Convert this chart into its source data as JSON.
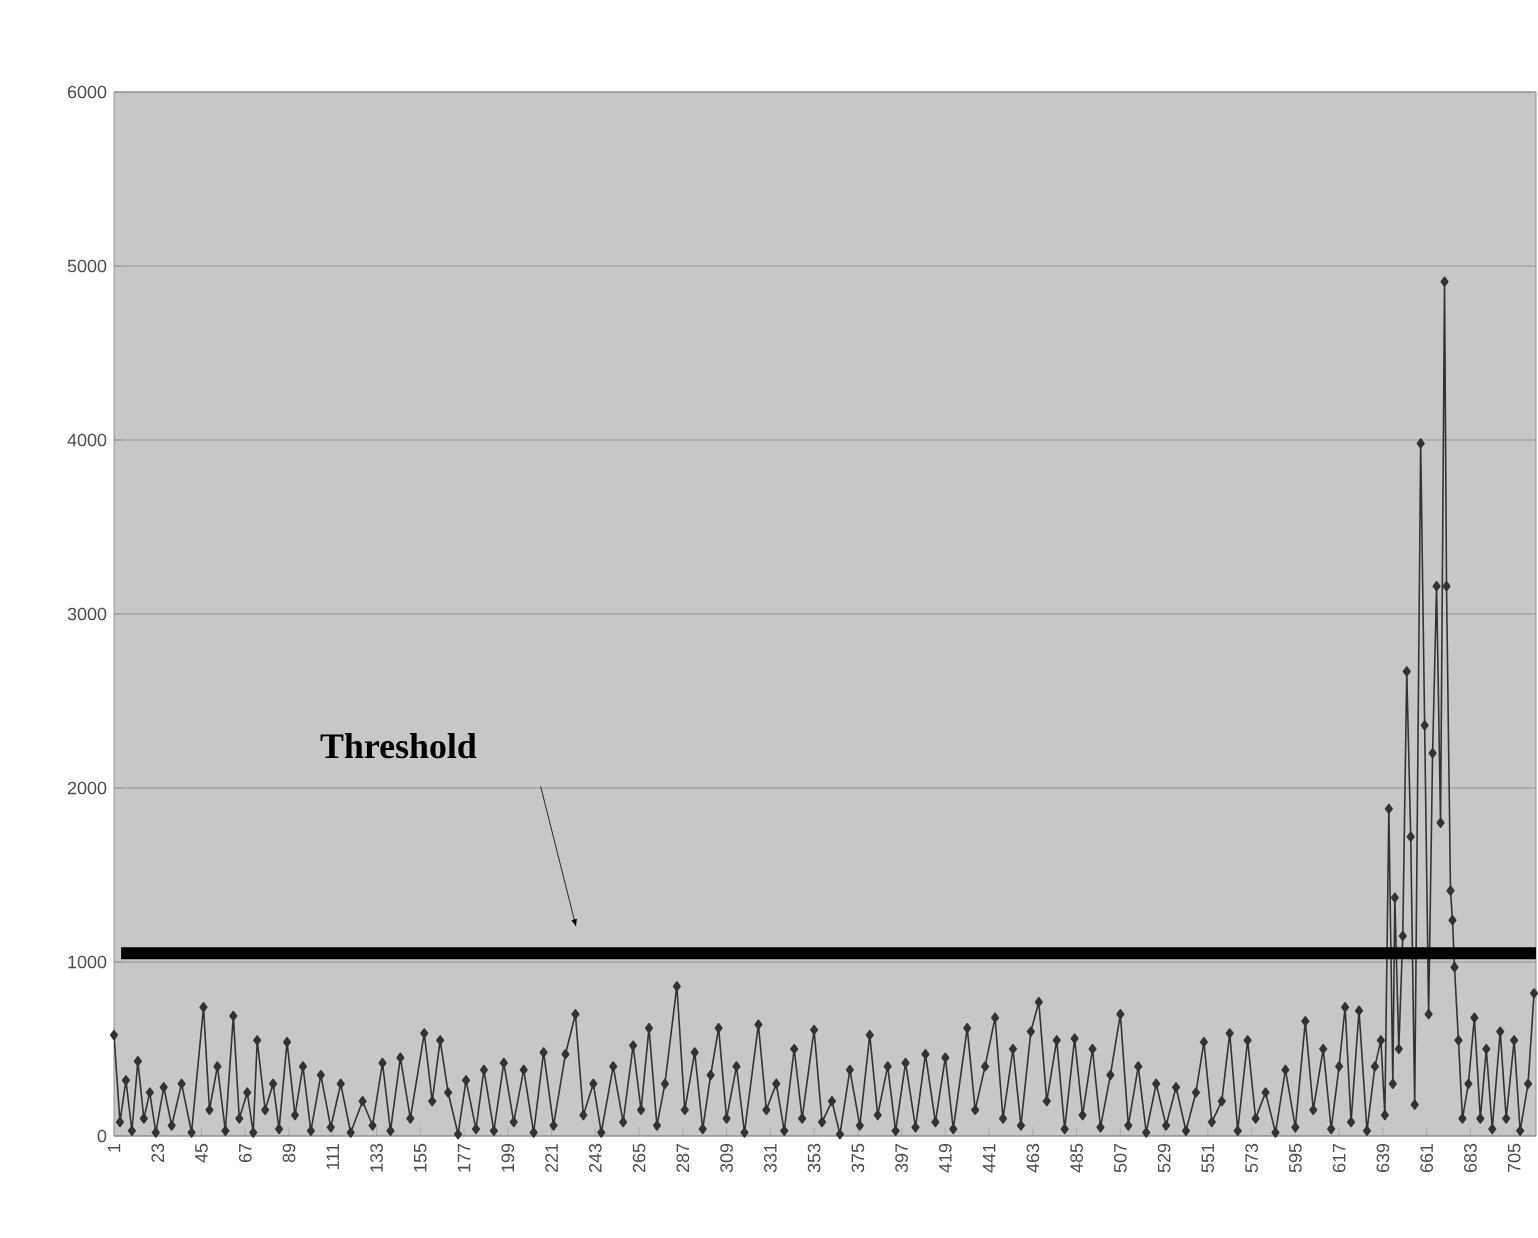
{
  "chart_data": {
    "type": "line",
    "xlim": [
      1,
      716
    ],
    "ylim": [
      0,
      6000
    ],
    "xticks": [
      1,
      23,
      45,
      67,
      89,
      111,
      133,
      155,
      177,
      199,
      221,
      243,
      265,
      287,
      309,
      331,
      353,
      375,
      397,
      419,
      441,
      463,
      485,
      507,
      529,
      551,
      573,
      595,
      617,
      639,
      661,
      683,
      705
    ],
    "yticks": [
      0,
      1000,
      2000,
      3000,
      4000,
      5000,
      6000
    ],
    "grid": "y",
    "marker": "diamond",
    "line_style": "solid",
    "ref_lines": [
      {
        "axis": "y",
        "value": 1050,
        "label": "Threshold",
        "color": "#000000"
      }
    ],
    "series": [
      {
        "color": "#333333",
        "x": [
          1,
          4,
          7,
          10,
          13,
          16,
          19,
          22,
          26,
          30,
          35,
          40,
          46,
          49,
          53,
          57,
          61,
          64,
          68,
          71,
          73,
          77,
          81,
          84,
          88,
          92,
          96,
          100,
          105,
          110,
          115,
          120,
          126,
          131,
          136,
          140,
          145,
          150,
          157,
          161,
          165,
          169,
          174,
          178,
          183,
          187,
          192,
          197,
          202,
          207,
          212,
          217,
          222,
          228,
          233,
          237,
          242,
          246,
          252,
          257,
          262,
          266,
          270,
          274,
          278,
          284,
          288,
          293,
          297,
          301,
          305,
          309,
          314,
          318,
          325,
          329,
          334,
          338,
          343,
          347,
          353,
          357,
          362,
          366,
          371,
          376,
          381,
          385,
          390,
          394,
          399,
          404,
          409,
          414,
          419,
          423,
          430,
          434,
          439,
          444,
          448,
          453,
          457,
          462,
          466,
          470,
          475,
          479,
          484,
          488,
          493,
          497,
          502,
          507,
          511,
          516,
          520,
          525,
          530,
          535,
          540,
          545,
          549,
          553,
          558,
          562,
          566,
          571,
          575,
          580,
          585,
          590,
          595,
          600,
          604,
          609,
          613,
          617,
          620,
          623,
          627,
          631,
          635,
          638,
          640,
          642,
          644,
          645,
          647,
          649,
          651,
          653,
          655,
          658,
          660,
          662,
          664,
          666,
          668,
          670,
          671,
          673,
          674,
          675,
          677,
          679,
          682,
          685,
          688,
          691,
          694,
          698,
          701,
          705,
          708,
          712,
          715
        ],
        "values": [
          580,
          80,
          320,
          30,
          430,
          100,
          250,
          20,
          280,
          60,
          300,
          20,
          740,
          150,
          400,
          30,
          690,
          100,
          250,
          20,
          550,
          150,
          300,
          40,
          540,
          120,
          400,
          30,
          350,
          50,
          300,
          20,
          200,
          60,
          420,
          30,
          450,
          100,
          590,
          200,
          550,
          250,
          10,
          320,
          40,
          380,
          30,
          420,
          80,
          380,
          20,
          480,
          60,
          470,
          700,
          120,
          300,
          20,
          400,
          80,
          520,
          150,
          620,
          60,
          300,
          860,
          150,
          480,
          40,
          350,
          620,
          100,
          400,
          20,
          640,
          150,
          300,
          30,
          500,
          100,
          610,
          80,
          200,
          10,
          380,
          60,
          580,
          120,
          400,
          30,
          420,
          50,
          470,
          80,
          450,
          40,
          620,
          150,
          400,
          680,
          100,
          500,
          60,
          600,
          770,
          200,
          550,
          40,
          560,
          120,
          500,
          50,
          350,
          700,
          60,
          400,
          20,
          300,
          60,
          280,
          30,
          250,
          540,
          80,
          200,
          590,
          30,
          550,
          100,
          250,
          20,
          380,
          50,
          660,
          150,
          500,
          40,
          400,
          740,
          80,
          720,
          30,
          400,
          550,
          120,
          1880,
          300,
          1370,
          500,
          1150,
          2670,
          1720,
          180,
          3980,
          2360,
          700,
          2200,
          3160,
          1800,
          4910,
          3160,
          1410,
          1240,
          970,
          550,
          100,
          300,
          680,
          100,
          500,
          40,
          600,
          100,
          550,
          30,
          300,
          820
        ]
      }
    ]
  }
}
